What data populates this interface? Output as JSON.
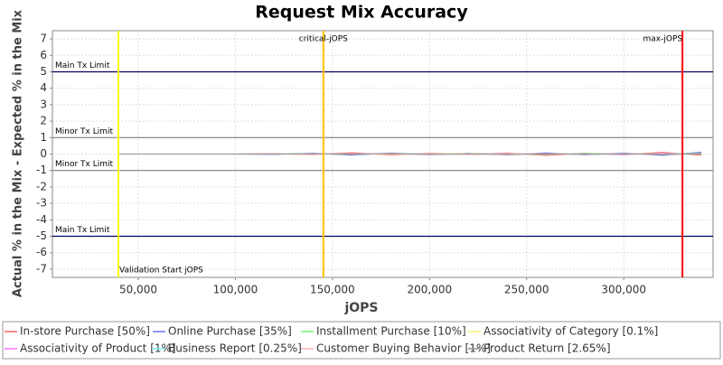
{
  "chart_data": {
    "type": "line",
    "title": "Request Mix Accuracy",
    "x_label": "jOPS",
    "y_label": "Actual % in the Mix - Expected % in the Mix",
    "x": [
      40000,
      60000,
      80000,
      100000,
      120000,
      140000,
      160000,
      180000,
      200000,
      220000,
      240000,
      260000,
      280000,
      300000,
      320000,
      340000
    ],
    "series": [
      {
        "name": "In-store Purchase [50%]",
        "color": "#ff6060",
        "values": [
          0,
          0,
          0,
          0,
          0.02,
          -0.04,
          0.08,
          -0.06,
          0.05,
          -0.03,
          0.06,
          -0.08,
          0.05,
          -0.05,
          0.1,
          -0.07
        ]
      },
      {
        "name": "Online Purchase [35%]",
        "color": "#7070ff",
        "values": [
          0,
          0,
          0,
          0,
          -0.02,
          0.05,
          -0.07,
          0.06,
          -0.04,
          0.04,
          -0.05,
          0.07,
          -0.05,
          0.06,
          -0.08,
          0.12
        ]
      },
      {
        "name": "Installment Purchase [10%]",
        "color": "#70f070",
        "values": [
          0,
          0,
          0,
          0,
          0.01,
          0.02,
          -0.03,
          0.04,
          -0.02,
          0.03,
          0.02,
          -0.03,
          0.04,
          -0.02,
          0.03,
          0.05
        ]
      },
      {
        "name": "Associativity of Category [0.1%]",
        "color": "#f0f070",
        "values": [
          0,
          0,
          0,
          0,
          0,
          -0.02,
          0.02,
          -0.03,
          0.01,
          0.02,
          -0.02,
          0.03,
          -0.01,
          0.02,
          -0.03,
          0.02
        ]
      },
      {
        "name": "Associativity of Product [1%]",
        "color": "#ff70ff",
        "values": [
          0,
          0,
          0,
          0,
          0.01,
          -0.01,
          0.02,
          0.01,
          -0.02,
          0.01,
          0.02,
          -0.01,
          0.01,
          -0.02,
          0.02,
          0.01
        ]
      },
      {
        "name": "Business Report [0.25%]",
        "color": "#70f0f0",
        "values": [
          0,
          0,
          0,
          0,
          -0.01,
          0.02,
          -0.02,
          0.02,
          0.01,
          -0.02,
          0.01,
          0.02,
          -0.02,
          0.01,
          -0.01,
          0.02
        ]
      },
      {
        "name": "Customer Buying Behavior [1%]",
        "color": "#ffb0b0",
        "values": [
          0,
          0,
          0,
          0,
          0.02,
          -0.03,
          0.03,
          -0.02,
          0.03,
          -0.04,
          0.02,
          0.03,
          -0.03,
          0.04,
          -0.02,
          0.03
        ]
      },
      {
        "name": "Product Return [2.65%]",
        "color": "#909090",
        "values": [
          0,
          0,
          0,
          0,
          -0.01,
          0.03,
          -0.02,
          0.04,
          -0.03,
          0.02,
          -0.04,
          0.03,
          -0.02,
          0.03,
          -0.04,
          0.02
        ]
      }
    ],
    "hlines": [
      {
        "value": 5,
        "label": "Main Tx Limit",
        "color": "#000066"
      },
      {
        "value": 1,
        "label": "Minor Tx Limit",
        "color": "#808080"
      },
      {
        "value": -1,
        "label": "Minor Tx Limit",
        "color": "#808080"
      },
      {
        "value": -5,
        "label": "Main Tx Limit",
        "color": "#000066"
      }
    ],
    "vlines": [
      {
        "value": 39767,
        "label": "Validation Start jOPS",
        "color": "#ffff00"
      },
      {
        "value": 145350,
        "label": "critical-jOPS",
        "color": "#ffc000"
      },
      {
        "value": 330233,
        "label": "max-jOPS",
        "color": "#ff0000"
      }
    ],
    "xlim": [
      5800,
      346000
    ],
    "ylim": [
      -7.5,
      7.5
    ],
    "xticks": [
      {
        "value": 50000,
        "label": "50,000"
      },
      {
        "value": 100000,
        "label": "100,000"
      },
      {
        "value": 150000,
        "label": "150,000"
      },
      {
        "value": 200000,
        "label": "200,000"
      },
      {
        "value": 250000,
        "label": "250,000"
      },
      {
        "value": 300000,
        "label": "300,000"
      }
    ],
    "yticks": [
      -7,
      -6,
      -5,
      -4,
      -3,
      -2,
      -1,
      0,
      1,
      2,
      3,
      4,
      5,
      6,
      7
    ],
    "grid": true
  }
}
